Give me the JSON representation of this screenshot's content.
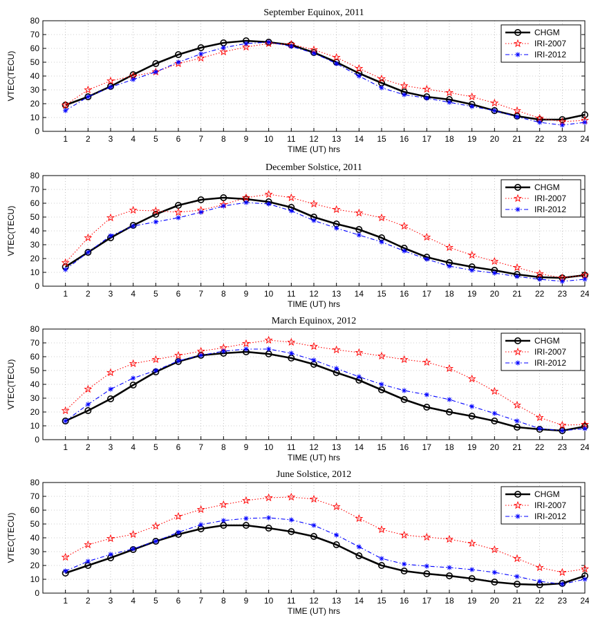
{
  "colors": {
    "chgm": "#000000",
    "iri2007": "#ff0000",
    "iri2012": "#0000ff"
  },
  "chart_data": [
    {
      "type": "line",
      "title": "September Equinox, 2011",
      "xlabel": "TIME (UT) hrs",
      "ylabel": "VTEC(TECU)",
      "x": [
        1,
        2,
        3,
        4,
        5,
        6,
        7,
        8,
        9,
        10,
        11,
        12,
        13,
        14,
        15,
        16,
        17,
        18,
        19,
        20,
        21,
        22,
        23,
        24
      ],
      "xlim": [
        0,
        24
      ],
      "ylim": [
        0,
        80
      ],
      "yticks": [
        0,
        10,
        20,
        30,
        40,
        50,
        60,
        70,
        80
      ],
      "grid": true,
      "legend_position": "top-right",
      "series": [
        {
          "name": "CHGM",
          "style": "solid",
          "marker": "circle",
          "color": "#000000",
          "values": [
            19,
            25,
            32.5,
            41,
            49,
            55.5,
            60.5,
            64,
            65.5,
            64.5,
            62.5,
            57,
            50,
            42,
            35,
            28.5,
            25,
            23,
            19.5,
            15,
            11,
            8.5,
            8.5,
            12
          ]
        },
        {
          "name": "IRI-2007",
          "style": "dotted",
          "marker": "star",
          "color": "#ff0000",
          "values": [
            19,
            30,
            36.5,
            40,
            43,
            49,
            53,
            57.5,
            61,
            63.5,
            63,
            59,
            53.5,
            45.5,
            38,
            33,
            30.5,
            28,
            25,
            20.5,
            15,
            9.5,
            7,
            8
          ]
        },
        {
          "name": "IRI-2012",
          "style": "dashdot",
          "marker": "asterisk",
          "color": "#0000ff",
          "values": [
            15,
            25,
            32,
            37.5,
            43,
            50,
            56,
            60.5,
            63.5,
            64.5,
            61.5,
            56.5,
            49,
            40,
            31.5,
            26.5,
            24,
            21,
            18,
            15,
            10.5,
            6.5,
            4.5,
            6.5
          ]
        }
      ]
    },
    {
      "type": "line",
      "title": "December Solstice, 2011",
      "xlabel": "TIME (UT) hrs",
      "ylabel": "VTEC(TECU)",
      "x": [
        1,
        2,
        3,
        4,
        5,
        6,
        7,
        8,
        9,
        10,
        11,
        12,
        13,
        14,
        15,
        16,
        17,
        18,
        19,
        20,
        21,
        22,
        23,
        24
      ],
      "xlim": [
        0,
        24
      ],
      "ylim": [
        0,
        80
      ],
      "yticks": [
        0,
        10,
        20,
        30,
        40,
        50,
        60,
        70,
        80
      ],
      "grid": true,
      "legend_position": "top-right",
      "series": [
        {
          "name": "CHGM",
          "style": "solid",
          "marker": "circle",
          "color": "#000000",
          "values": [
            14,
            24.5,
            35,
            44,
            52,
            58.5,
            62.5,
            64,
            63,
            61,
            57,
            50,
            45,
            41,
            35,
            27.5,
            21,
            17,
            14,
            11.5,
            8.5,
            6.5,
            6,
            8
          ]
        },
        {
          "name": "IRI-2007",
          "style": "dotted",
          "marker": "star",
          "color": "#ff0000",
          "values": [
            17,
            35,
            49.5,
            55,
            54.5,
            53.5,
            55,
            59,
            64,
            66.5,
            64,
            59.5,
            55.5,
            53,
            49.5,
            43.5,
            35.5,
            28,
            22.5,
            18,
            13.5,
            9,
            6,
            8
          ]
        },
        {
          "name": "IRI-2012",
          "style": "dashdot",
          "marker": "asterisk",
          "color": "#0000ff",
          "values": [
            12,
            24.5,
            36.5,
            43.5,
            46.5,
            49.5,
            53.5,
            58,
            60.5,
            59.5,
            54.5,
            47.5,
            42,
            37,
            32,
            25.5,
            19.5,
            14.5,
            11.5,
            9.5,
            7,
            5,
            3.5,
            5
          ]
        }
      ]
    },
    {
      "type": "line",
      "title": "March Equinox, 2012",
      "xlabel": "TIME (UT) hrs",
      "ylabel": "VTEC(TECU)",
      "x": [
        1,
        2,
        3,
        4,
        5,
        6,
        7,
        8,
        9,
        10,
        11,
        12,
        13,
        14,
        15,
        16,
        17,
        18,
        19,
        20,
        21,
        22,
        23,
        24
      ],
      "xlim": [
        0,
        24
      ],
      "ylim": [
        0,
        80
      ],
      "yticks": [
        0,
        10,
        20,
        30,
        40,
        50,
        60,
        70,
        80
      ],
      "grid": true,
      "legend_position": "top-right",
      "series": [
        {
          "name": "CHGM",
          "style": "solid",
          "marker": "circle",
          "color": "#000000",
          "values": [
            13.5,
            21,
            29.5,
            39.5,
            49,
            56.5,
            61,
            62.5,
            63.5,
            62,
            59,
            54.5,
            48.5,
            43,
            36,
            29,
            23.5,
            20,
            17,
            13.5,
            9,
            7.5,
            6.5,
            9.5
          ]
        },
        {
          "name": "IRI-2007",
          "style": "dotted",
          "marker": "star",
          "color": "#ff0000",
          "values": [
            21,
            36.5,
            48.5,
            55,
            58,
            61,
            64,
            66.5,
            69.5,
            72,
            70.5,
            67.5,
            65,
            63,
            60.5,
            58,
            56,
            51.5,
            44,
            35,
            25,
            16,
            10.5,
            11
          ]
        },
        {
          "name": "IRI-2012",
          "style": "dashdot",
          "marker": "asterisk",
          "color": "#0000ff",
          "values": [
            13.5,
            25.5,
            36.5,
            44.5,
            50,
            57,
            61,
            64,
            65.5,
            65.5,
            62.5,
            57.5,
            51.5,
            45.5,
            40,
            35.5,
            32.5,
            29,
            24,
            19,
            13.5,
            8,
            6.5,
            8
          ]
        }
      ]
    },
    {
      "type": "line",
      "title": "June Solstice, 2012",
      "xlabel": "TIME (UT) hrs",
      "ylabel": "VTEC(TECU)",
      "x": [
        1,
        2,
        3,
        4,
        5,
        6,
        7,
        8,
        9,
        10,
        11,
        12,
        13,
        14,
        15,
        16,
        17,
        18,
        19,
        20,
        21,
        22,
        23,
        24
      ],
      "xlim": [
        0,
        24
      ],
      "ylim": [
        0,
        80
      ],
      "yticks": [
        0,
        10,
        20,
        30,
        40,
        50,
        60,
        70,
        80
      ],
      "grid": true,
      "legend_position": "top-right",
      "series": [
        {
          "name": "CHGM",
          "style": "solid",
          "marker": "circle",
          "color": "#000000",
          "values": [
            14.5,
            20,
            25.5,
            31.5,
            37.5,
            42.5,
            46.5,
            49,
            49,
            47,
            44.5,
            41,
            35,
            27,
            20,
            16,
            14,
            12.5,
            10.5,
            8,
            6.5,
            6,
            7,
            12.5
          ]
        },
        {
          "name": "IRI-2007",
          "style": "dotted",
          "marker": "star",
          "color": "#ff0000",
          "values": [
            26,
            35,
            39.5,
            42.5,
            48.5,
            55.5,
            60.5,
            64,
            67,
            69,
            69.5,
            68,
            62.5,
            54,
            46,
            42,
            40.5,
            39,
            36,
            31.5,
            25,
            18.5,
            15,
            17.5
          ]
        },
        {
          "name": "IRI-2012",
          "style": "dashdot",
          "marker": "asterisk",
          "color": "#0000ff",
          "values": [
            16,
            23,
            28,
            32,
            37.5,
            44,
            49.5,
            52.5,
            54,
            54.5,
            53,
            49,
            42,
            33.5,
            25,
            21,
            19.5,
            18.5,
            17,
            15,
            12,
            8.5,
            6.5,
            10
          ]
        }
      ]
    }
  ]
}
